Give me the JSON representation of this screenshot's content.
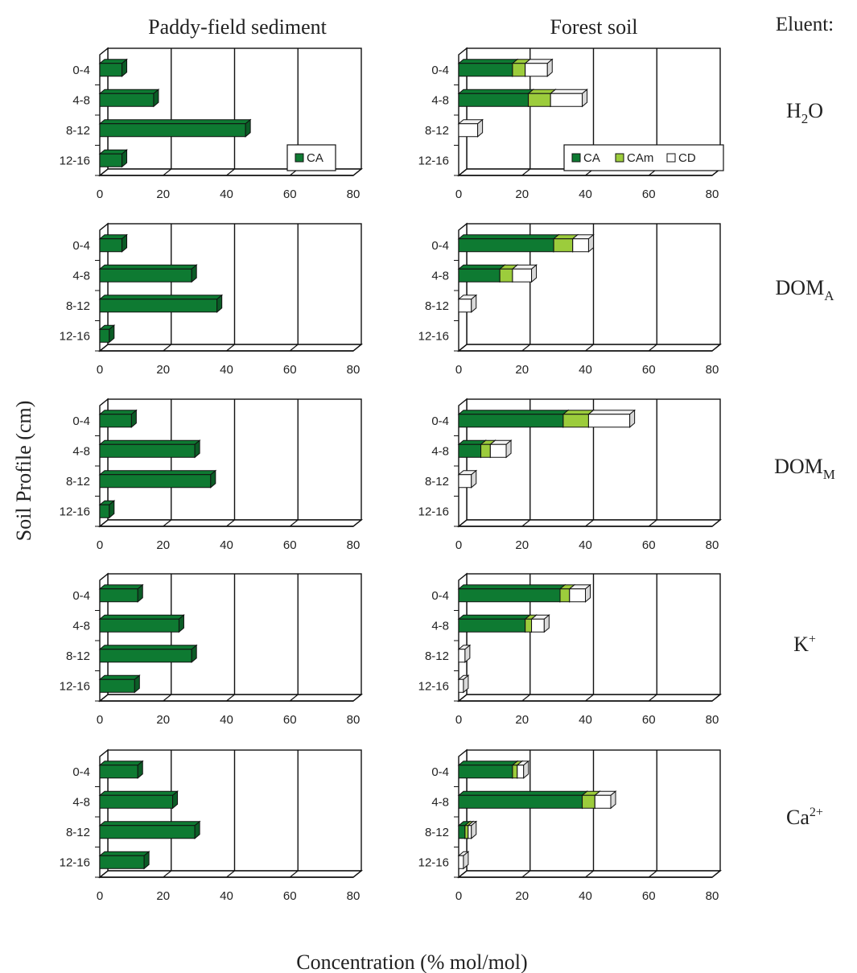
{
  "figure": {
    "columns": [
      "Paddy-field sediment",
      "Forest soil"
    ],
    "eluent_label": "Eluent:",
    "y_label": "Soil Profile (cm)",
    "x_label": "Concentration (% mol/mol)"
  },
  "chart_data": {
    "type": "bar",
    "orientation": "horizontal",
    "stacked": true,
    "categories": [
      "0-4",
      "4-8",
      "8-12",
      "12-16"
    ],
    "x_ticks": [
      0,
      20,
      40,
      60,
      80
    ],
    "xlim": [
      0,
      80
    ],
    "grid": true,
    "colors": {
      "CA": "#0e7a32",
      "CAm": "#9ccc3c",
      "CD": "#ffffff"
    },
    "panels": [
      {
        "row": "H2O",
        "row_label_main": "H",
        "row_label_sub": "2",
        "row_label_tail": "O",
        "row_label_sup": "",
        "paddy": {
          "legend": [
            "CA"
          ],
          "series": [
            {
              "name": "CA",
              "values": [
                7,
                17,
                46,
                7
              ]
            }
          ]
        },
        "forest": {
          "legend": [
            "CA",
            "CAm",
            "CD"
          ],
          "series": [
            {
              "name": "CA",
              "values": [
                17,
                22,
                0,
                0
              ]
            },
            {
              "name": "CAm",
              "values": [
                4,
                7,
                0,
                0
              ]
            },
            {
              "name": "CD",
              "values": [
                7,
                10,
                6,
                0
              ]
            }
          ]
        }
      },
      {
        "row": "DOMA",
        "row_label_main": "DOM",
        "row_label_sub": "A",
        "row_label_tail": "",
        "row_label_sup": "",
        "paddy": {
          "series": [
            {
              "name": "CA",
              "values": [
                7,
                29,
                37,
                3
              ]
            }
          ]
        },
        "forest": {
          "series": [
            {
              "name": "CA",
              "values": [
                30,
                13,
                0,
                0
              ]
            },
            {
              "name": "CAm",
              "values": [
                6,
                4,
                0,
                0
              ]
            },
            {
              "name": "CD",
              "values": [
                5,
                6,
                4,
                0
              ]
            }
          ]
        }
      },
      {
        "row": "DOMM",
        "row_label_main": "DOM",
        "row_label_sub": "M",
        "row_label_tail": "",
        "row_label_sup": "",
        "paddy": {
          "series": [
            {
              "name": "CA",
              "values": [
                10,
                30,
                35,
                3
              ]
            }
          ]
        },
        "forest": {
          "series": [
            {
              "name": "CA",
              "values": [
                33,
                7,
                0,
                0
              ]
            },
            {
              "name": "CAm",
              "values": [
                8,
                3,
                0,
                0
              ]
            },
            {
              "name": "CD",
              "values": [
                13,
                5,
                4,
                0
              ]
            }
          ]
        }
      },
      {
        "row": "K+",
        "row_label_main": "K",
        "row_label_sub": "",
        "row_label_tail": "",
        "row_label_sup": "+",
        "paddy": {
          "series": [
            {
              "name": "CA",
              "values": [
                12,
                25,
                29,
                11
              ]
            }
          ]
        },
        "forest": {
          "series": [
            {
              "name": "CA",
              "values": [
                32,
                21,
                0,
                0
              ]
            },
            {
              "name": "CAm",
              "values": [
                3,
                2,
                0,
                0
              ]
            },
            {
              "name": "CD",
              "values": [
                5,
                4,
                2,
                1.5
              ]
            }
          ]
        }
      },
      {
        "row": "Ca2+",
        "row_label_main": "Ca",
        "row_label_sub": "",
        "row_label_tail": "",
        "row_label_sup": "2+",
        "paddy": {
          "series": [
            {
              "name": "CA",
              "values": [
                12,
                23,
                30,
                14
              ]
            }
          ]
        },
        "forest": {
          "series": [
            {
              "name": "CA",
              "values": [
                17,
                39,
                2,
                0
              ]
            },
            {
              "name": "CAm",
              "values": [
                1.5,
                4,
                1,
                0
              ]
            },
            {
              "name": "CD",
              "values": [
                2,
                5,
                1,
                1.5
              ]
            }
          ]
        }
      }
    ]
  }
}
